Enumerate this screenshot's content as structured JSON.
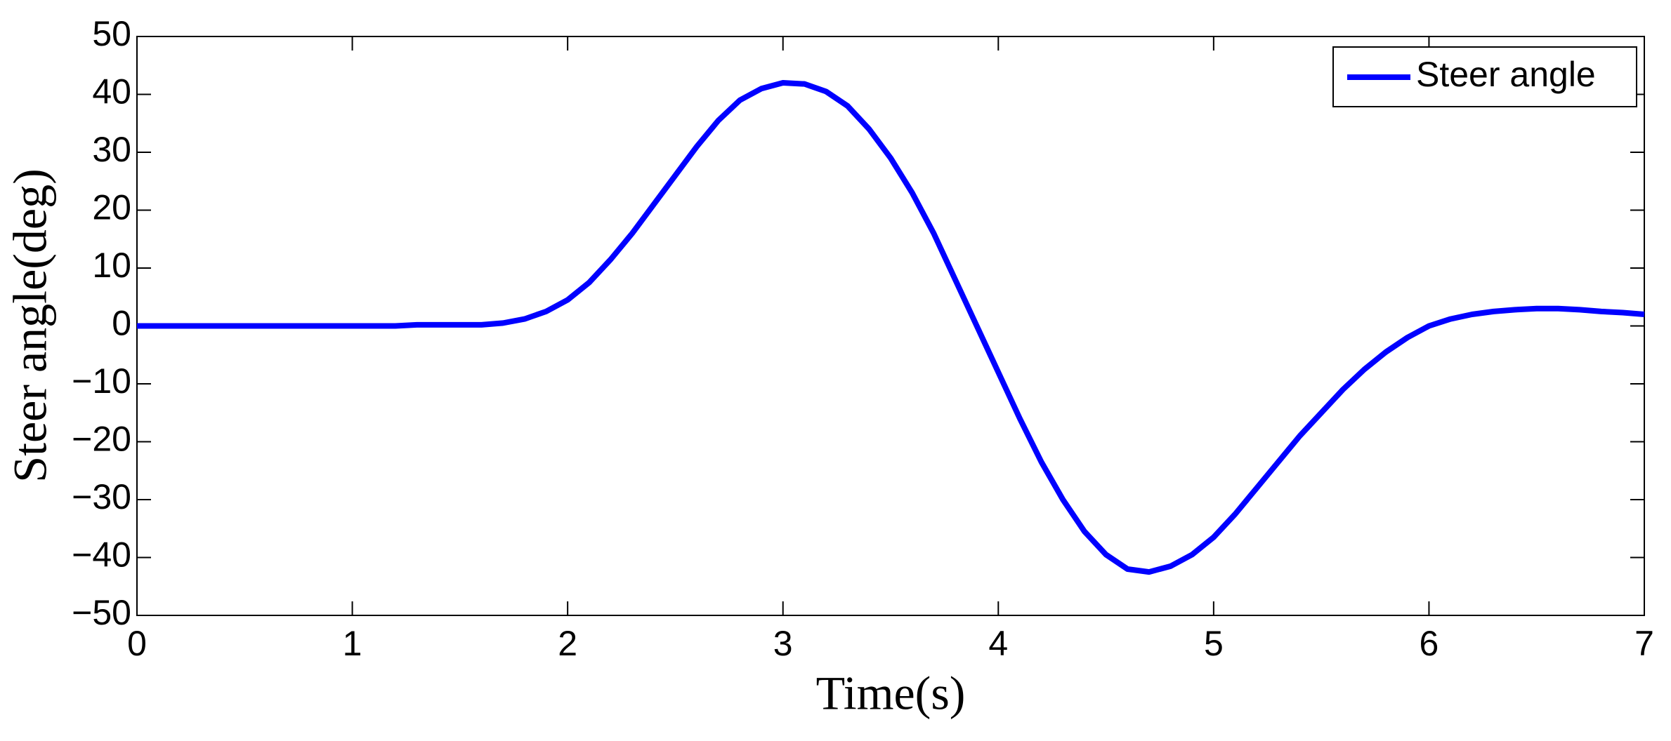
{
  "chart_data": {
    "type": "line",
    "xlabel": "Time(s)",
    "ylabel": "Steer angle(deg)",
    "x": [
      0,
      0.1,
      0.2,
      0.3,
      0.4,
      0.5,
      0.6,
      0.7,
      0.8,
      0.9,
      1.0,
      1.1,
      1.2,
      1.3,
      1.4,
      1.5,
      1.6,
      1.7,
      1.8,
      1.9,
      2.0,
      2.1,
      2.2,
      2.3,
      2.4,
      2.5,
      2.6,
      2.7,
      2.8,
      2.9,
      3.0,
      3.1,
      3.2,
      3.3,
      3.4,
      3.5,
      3.6,
      3.7,
      3.8,
      3.9,
      4.0,
      4.1,
      4.2,
      4.3,
      4.4,
      4.5,
      4.6,
      4.7,
      4.8,
      4.9,
      5.0,
      5.1,
      5.2,
      5.3,
      5.4,
      5.5,
      5.6,
      5.7,
      5.8,
      5.9,
      6.0,
      6.1,
      6.2,
      6.3,
      6.4,
      6.5,
      6.6,
      6.7,
      6.8,
      6.9,
      7.0
    ],
    "series": [
      {
        "name": "Steer angle",
        "color": "#0000ff",
        "values": [
          0,
          0,
          0,
          0,
          0,
          0,
          0,
          0,
          0,
          0,
          0,
          0,
          0,
          0.2,
          0.2,
          0.2,
          0.2,
          0.5,
          1.2,
          2.5,
          4.5,
          7.5,
          11.5,
          16,
          21,
          26,
          31,
          35.5,
          39,
          41,
          42,
          41.8,
          40.5,
          38,
          34,
          29,
          23,
          16,
          8,
          0,
          -8,
          -16,
          -23.5,
          -30,
          -35.5,
          -39.5,
          -42,
          -42.5,
          -41.5,
          -39.5,
          -36.5,
          -32.5,
          -28,
          -23.5,
          -19,
          -15,
          -11,
          -7.5,
          -4.5,
          -2,
          0,
          1.2,
          2,
          2.5,
          2.8,
          3,
          3,
          2.8,
          2.5,
          2.3,
          2
        ]
      }
    ],
    "xlim": [
      0,
      7
    ],
    "xticks": [
      0,
      1,
      2,
      3,
      4,
      5,
      6,
      7
    ],
    "ylim": [
      -50,
      50
    ],
    "yticks": [
      {
        "value": -50,
        "label": "−50"
      },
      {
        "value": -40,
        "label": "−40"
      },
      {
        "value": -30,
        "label": "−30"
      },
      {
        "value": -20,
        "label": "−20"
      },
      {
        "value": -10,
        "label": "−10"
      },
      0,
      10,
      20,
      30,
      40,
      50
    ],
    "legend": "upper right"
  }
}
